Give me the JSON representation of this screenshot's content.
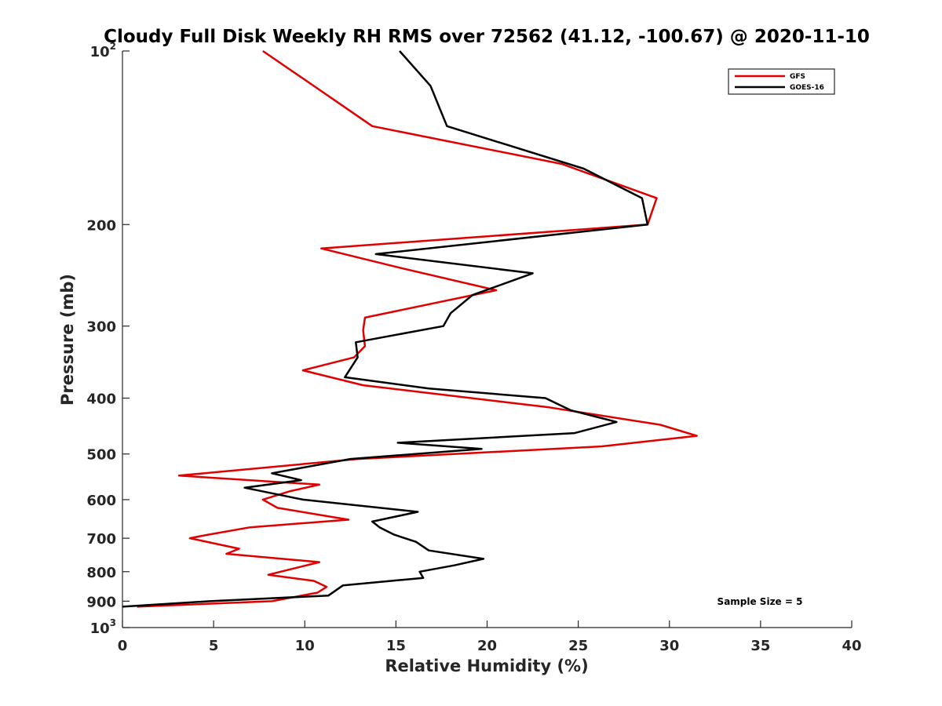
{
  "chart_data": {
    "type": "line",
    "title": "Cloudy Full Disk Weekly RH RMS over 72562 (41.12, -100.67) @ 2020-11-10",
    "xlabel": "Relative Humidity (%)",
    "ylabel": "Pressure (mb)",
    "xlim": [
      0,
      40
    ],
    "ylim": [
      100,
      1000
    ],
    "y_scale": "log",
    "y_reversed": true,
    "x_ticks": [
      0,
      5,
      10,
      15,
      20,
      25,
      30,
      35,
      40
    ],
    "y_ticks": [
      {
        "value": 100,
        "base": "10",
        "exp": "2"
      },
      {
        "value": 200,
        "label": "200"
      },
      {
        "value": 300,
        "label": "300"
      },
      {
        "value": 400,
        "label": "400"
      },
      {
        "value": 500,
        "label": "500"
      },
      {
        "value": 600,
        "label": "600"
      },
      {
        "value": 700,
        "label": "700"
      },
      {
        "value": 800,
        "label": "800"
      },
      {
        "value": 900,
        "label": "900"
      },
      {
        "value": 1000,
        "base": "10",
        "exp": "3"
      }
    ],
    "grid": false,
    "legend_position": "top-right",
    "annotation": "Sample Size = 5",
    "series": [
      {
        "name": "GFS",
        "color": "#e00000",
        "points": [
          [
            7.7,
            100
          ],
          [
            10.5,
            115
          ],
          [
            13.7,
            135
          ],
          [
            24.1,
            157
          ],
          [
            26.0,
            165
          ],
          [
            29.3,
            180
          ],
          [
            28.8,
            200
          ],
          [
            10.9,
            220
          ],
          [
            15.3,
            238
          ],
          [
            20.5,
            260
          ],
          [
            13.3,
            290
          ],
          [
            13.2,
            305
          ],
          [
            13.3,
            325
          ],
          [
            12.7,
            340
          ],
          [
            9.9,
            358
          ],
          [
            13.2,
            380
          ],
          [
            23.4,
            415
          ],
          [
            29.5,
            445
          ],
          [
            31.5,
            465
          ],
          [
            26.3,
            485
          ],
          [
            12.9,
            510
          ],
          [
            3.1,
            545
          ],
          [
            10.8,
            565
          ],
          [
            9.2,
            580
          ],
          [
            7.7,
            600
          ],
          [
            8.5,
            620
          ],
          [
            12.4,
            650
          ],
          [
            7.0,
            670
          ],
          [
            4.7,
            690
          ],
          [
            3.7,
            700
          ],
          [
            6.4,
            730
          ],
          [
            5.7,
            745
          ],
          [
            10.8,
            770
          ],
          [
            8.0,
            810
          ],
          [
            10.5,
            830
          ],
          [
            11.2,
            850
          ],
          [
            10.7,
            870
          ],
          [
            8.2,
            900
          ],
          [
            0.8,
            920
          ]
        ]
      },
      {
        "name": "GOES-16",
        "color": "#000000",
        "points": [
          [
            15.2,
            100
          ],
          [
            16.9,
            115
          ],
          [
            17.8,
            135
          ],
          [
            25.3,
            160
          ],
          [
            28.5,
            180
          ],
          [
            28.8,
            200
          ],
          [
            13.9,
            225
          ],
          [
            22.5,
            243
          ],
          [
            19.2,
            265
          ],
          [
            18.0,
            285
          ],
          [
            17.6,
            300
          ],
          [
            12.8,
            320
          ],
          [
            12.9,
            340
          ],
          [
            12.2,
            368
          ],
          [
            16.8,
            385
          ],
          [
            23.2,
            400
          ],
          [
            24.6,
            420
          ],
          [
            27.1,
            440
          ],
          [
            24.8,
            460
          ],
          [
            15.1,
            478
          ],
          [
            19.7,
            490
          ],
          [
            12.5,
            510
          ],
          [
            8.2,
            540
          ],
          [
            9.8,
            555
          ],
          [
            6.7,
            572
          ],
          [
            9.9,
            600
          ],
          [
            16.2,
            630
          ],
          [
            13.7,
            655
          ],
          [
            14.1,
            670
          ],
          [
            14.9,
            690
          ],
          [
            16.1,
            710
          ],
          [
            16.8,
            735
          ],
          [
            19.8,
            760
          ],
          [
            18.2,
            780
          ],
          [
            16.3,
            800
          ],
          [
            16.5,
            820
          ],
          [
            12.1,
            845
          ],
          [
            11.3,
            880
          ],
          [
            4.8,
            900
          ],
          [
            0.0,
            920
          ]
        ]
      }
    ]
  }
}
